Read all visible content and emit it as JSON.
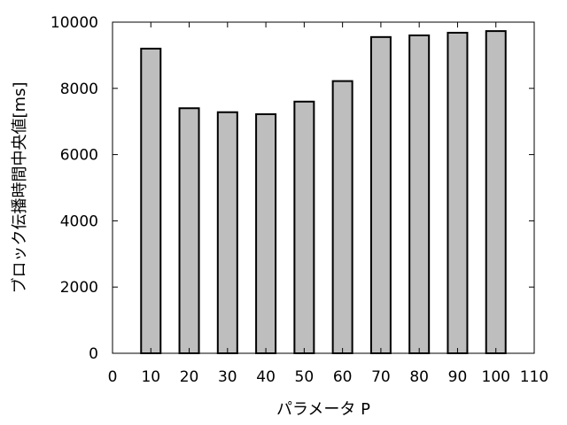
{
  "chart_data": {
    "type": "bar",
    "title": "",
    "xlabel": "パラメータ P",
    "ylabel": "ブロック伝播時間中央値[ms]",
    "x": [
      10,
      20,
      30,
      40,
      50,
      60,
      70,
      80,
      90,
      100
    ],
    "values": [
      9200,
      7400,
      7280,
      7220,
      7600,
      8220,
      9550,
      9600,
      9680,
      9730
    ],
    "xlim": [
      0,
      110
    ],
    "ylim": [
      0,
      10000
    ],
    "xticks": [
      0,
      10,
      20,
      30,
      40,
      50,
      60,
      70,
      80,
      90,
      100,
      110
    ],
    "yticks": [
      0,
      2000,
      4000,
      6000,
      8000,
      10000
    ],
    "grid": false,
    "legend": "none",
    "colors": {
      "bar_fill": "#bebebe",
      "bar_stroke": "#000000",
      "axis": "#000000"
    }
  }
}
